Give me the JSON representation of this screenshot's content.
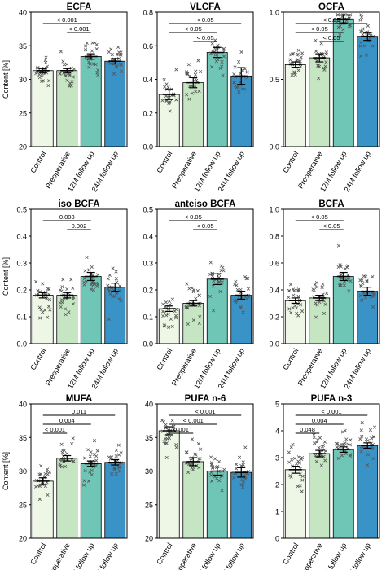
{
  "categories": [
    "Control",
    "Preoperative",
    "12M follow up",
    "24M follow up"
  ],
  "bar_colors": [
    "#eef7e6",
    "#c6e6c3",
    "#70c6b6",
    "#3a93c6"
  ],
  "ylabel": "Content [%]",
  "chart_data": [
    {
      "type": "bar",
      "title": "ECFA",
      "ylabel": "Content [%]",
      "ylim": [
        20,
        40
      ],
      "yticks": [
        "20",
        "25",
        "30",
        "35",
        "40"
      ],
      "values": [
        31.3,
        31.3,
        33.4,
        32.7
      ],
      "sem": [
        0.3,
        0.3,
        0.4,
        0.4
      ],
      "comparisons": [
        {
          "from": 0,
          "to": 2,
          "label": "< 0.001"
        },
        {
          "from": 1,
          "to": 2,
          "label": "< 0.001"
        }
      ]
    },
    {
      "type": "bar",
      "title": "VLCFA",
      "ylabel": "",
      "ylim": [
        0,
        0.8
      ],
      "yticks": [
        "0.0",
        "0.2",
        "0.4",
        "0.6",
        "0.8"
      ],
      "values": [
        0.31,
        0.38,
        0.56,
        0.42
      ],
      "sem": [
        0.03,
        0.03,
        0.03,
        0.05
      ],
      "comparisons": [
        {
          "from": 0,
          "to": 3,
          "label": "< 0.05"
        },
        {
          "from": 0,
          "to": 2,
          "label": "< 0.05"
        },
        {
          "from": 1,
          "to": 2,
          "label": "< 0.05"
        }
      ]
    },
    {
      "type": "bar",
      "title": "OCFA",
      "ylabel": "",
      "ylim": [
        0,
        1.0
      ],
      "yticks": [
        "0.0",
        "0.5",
        "1.0"
      ],
      "ytick_values": [
        0,
        0.5,
        1.0
      ],
      "values": [
        0.61,
        0.66,
        0.95,
        0.82
      ],
      "sem": [
        0.02,
        0.03,
        0.03,
        0.03
      ],
      "comparisons": [
        {
          "from": 0,
          "to": 3,
          "label": "< 0.05"
        },
        {
          "from": 0,
          "to": 2,
          "label": "< 0.05"
        },
        {
          "from": 1,
          "to": 2,
          "label": "< 0.05"
        }
      ]
    },
    {
      "type": "bar",
      "title": "iso BCFA",
      "ylabel": "Content [%]",
      "ylim": [
        0,
        0.5
      ],
      "yticks": [
        "0.0",
        "0.1",
        "0.2",
        "0.3",
        "0.4",
        "0.5"
      ],
      "values": [
        0.18,
        0.18,
        0.25,
        0.21
      ],
      "sem": [
        0.01,
        0.01,
        0.015,
        0.015
      ],
      "comparisons": [
        {
          "from": 0,
          "to": 2,
          "label": "0.008"
        },
        {
          "from": 1,
          "to": 2,
          "label": "0.002"
        }
      ]
    },
    {
      "type": "bar",
      "title": "anteiso BCFA",
      "ylabel": "",
      "ylim": [
        0,
        0.5
      ],
      "yticks": [
        "0.0",
        "0.1",
        "0.2",
        "0.3",
        "0.4",
        "0.5"
      ],
      "values": [
        0.13,
        0.15,
        0.24,
        0.18
      ],
      "sem": [
        0.01,
        0.01,
        0.02,
        0.015
      ],
      "comparisons": [
        {
          "from": 0,
          "to": 2,
          "label": "< 0.05"
        },
        {
          "from": 1,
          "to": 2,
          "label": "< 0.05"
        }
      ]
    },
    {
      "type": "bar",
      "title": "BCFA",
      "ylabel": "",
      "ylim": [
        0,
        1.0
      ],
      "yticks": [
        "0.0",
        "0.2",
        "0.4",
        "0.6",
        "0.8",
        "1.0"
      ],
      "values": [
        0.32,
        0.34,
        0.5,
        0.39
      ],
      "sem": [
        0.02,
        0.02,
        0.03,
        0.03
      ],
      "comparisons": [
        {
          "from": 0,
          "to": 2,
          "label": "< 0.05"
        },
        {
          "from": 1,
          "to": 2,
          "label": "< 0.05"
        }
      ]
    },
    {
      "type": "bar",
      "title": "MUFA",
      "ylabel": "Content [%]",
      "ylim": [
        20,
        40
      ],
      "yticks": [
        "20",
        "25",
        "30",
        "35",
        "40"
      ],
      "values": [
        28.5,
        31.9,
        31.1,
        31.3
      ],
      "sem": [
        0.5,
        0.4,
        0.4,
        0.4
      ],
      "comparisons": [
        {
          "from": 0,
          "to": 3,
          "label": "0.011"
        },
        {
          "from": 0,
          "to": 2,
          "label": "0.004"
        },
        {
          "from": 0,
          "to": 1,
          "label": "< 0.001"
        }
      ]
    },
    {
      "type": "bar",
      "title": "PUFA n-6",
      "ylabel": "",
      "ylim": [
        20,
        40
      ],
      "yticks": [
        "20",
        "25",
        "30",
        "35",
        "40"
      ],
      "values": [
        36.0,
        31.4,
        30.0,
        29.8
      ],
      "sem": [
        0.6,
        0.6,
        0.6,
        0.7
      ],
      "comparisons": [
        {
          "from": 0,
          "to": 3,
          "label": "< 0.001"
        },
        {
          "from": 0,
          "to": 2,
          "label": "< 0.001"
        },
        {
          "from": 0,
          "to": 1,
          "label": "0.001"
        }
      ]
    },
    {
      "type": "bar",
      "title": "PUFA n-3",
      "ylabel": "",
      "ylim": [
        0,
        5
      ],
      "yticks": [
        "0",
        "1",
        "2",
        "3",
        "4",
        "5"
      ],
      "values": [
        2.55,
        3.15,
        3.3,
        3.45
      ],
      "sem": [
        0.13,
        0.12,
        0.1,
        0.1
      ],
      "comparisons": [
        {
          "from": 0,
          "to": 3,
          "label": "< 0.001"
        },
        {
          "from": 0,
          "to": 2,
          "label": "0.004"
        },
        {
          "from": 0,
          "to": 1,
          "label": "0.048"
        }
      ]
    }
  ]
}
